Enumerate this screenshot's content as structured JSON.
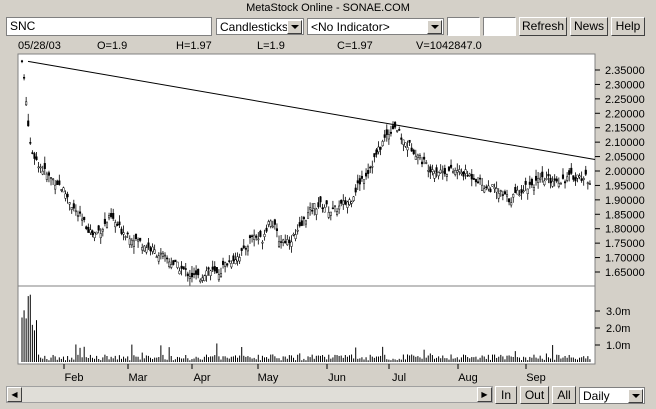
{
  "window": {
    "title": "MetaStock Online - SONAE.COM"
  },
  "toolbar": {
    "symbol_value": "SNC",
    "chart_style": "Candlesticks",
    "indicator": "<No Indicator>",
    "refresh_label": "Refresh",
    "news_label": "News",
    "help_label": "Help"
  },
  "ohlc": {
    "date": "05/28/03",
    "open": "O=1.9",
    "high": "H=1.97",
    "low": "L=1.9",
    "close": "C=1.97",
    "volume": "V=1042847.0"
  },
  "price_axis": [
    "2.35000",
    "2.30000",
    "2.25000",
    "2.20000",
    "2.15000",
    "2.10000",
    "2.05000",
    "2.00000",
    "1.95000",
    "1.90000",
    "1.85000",
    "1.80000",
    "1.75000",
    "1.70000",
    "1.65000"
  ],
  "volume_axis": [
    "3.0m",
    "2.0m",
    "1.0m"
  ],
  "months": [
    "Feb",
    "Mar",
    "Apr",
    "May",
    "Jun",
    "Jul",
    "Aug",
    "Sep"
  ],
  "bottom": {
    "in_label": "In",
    "out_label": "Out",
    "all_label": "All",
    "period": "Daily"
  },
  "chart_data": {
    "type": "candlestick",
    "symbol": "SNC",
    "x_months": [
      "Feb",
      "Mar",
      "Apr",
      "May",
      "Jun",
      "Jul",
      "Aug",
      "Sep"
    ],
    "ylim": [
      1.6,
      2.4
    ],
    "close_series": [
      2.38,
      2.08,
      2.02,
      1.98,
      1.96,
      1.92,
      1.86,
      1.82,
      1.78,
      1.8,
      1.84,
      1.8,
      1.78,
      1.76,
      1.74,
      1.72,
      1.7,
      1.68,
      1.66,
      1.64,
      1.63,
      1.66,
      1.64,
      1.68,
      1.7,
      1.72,
      1.78,
      1.76,
      1.84,
      1.76,
      1.76,
      1.78,
      1.84,
      1.88,
      1.88,
      1.86,
      1.88,
      1.9,
      1.96,
      2.0,
      2.06,
      2.12,
      2.16,
      2.1,
      2.08,
      2.04,
      2.01,
      2.0,
      2.0,
      2.0,
      1.99,
      1.98,
      1.95,
      1.94,
      1.92,
      1.9,
      1.93,
      1.95,
      1.96,
      1.97,
      1.97,
      1.97,
      1.98,
      1.98,
      1.97
    ],
    "trendline": {
      "start": 2.38,
      "end": 2.04
    },
    "volume_max_m": 4.0,
    "last_bar": {
      "date": "05/28/03",
      "open": 1.9,
      "high": 1.97,
      "low": 1.9,
      "close": 1.97,
      "volume": 1042847.0
    }
  }
}
